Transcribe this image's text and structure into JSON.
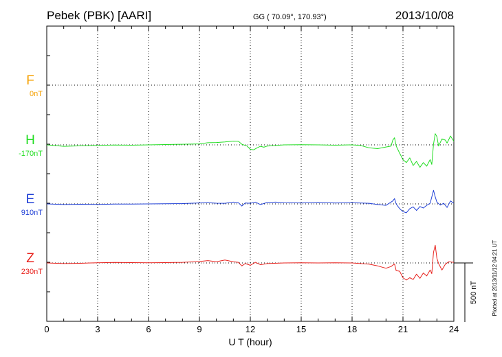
{
  "header": {
    "station": "Pebek (PBK)  [AARI]",
    "coords": "GG ( 70.09°, 170.93°)",
    "date": "2013/10/08"
  },
  "side_note": "Plotted at 2013/11/12 04:21  UT",
  "chart_data": {
    "type": "line",
    "title": "Pebek (PBK)  [AARI]",
    "xlabel": "U T (hour)",
    "xlim": [
      0,
      24
    ],
    "xticks": [
      0,
      3,
      6,
      9,
      12,
      15,
      18,
      21,
      24
    ],
    "grid": true,
    "scale_bar": "500 nT",
    "nt_per_unit": 500,
    "series": [
      {
        "name": "F",
        "baseline_label": "0nT",
        "color": "#f5a000",
        "points": []
      },
      {
        "name": "H",
        "baseline_label": "-170nT",
        "color": "#22dd22",
        "points": [
          [
            0,
            0
          ],
          [
            1,
            -12
          ],
          [
            2,
            -8
          ],
          [
            3,
            -4
          ],
          [
            4,
            -2
          ],
          [
            5,
            -3
          ],
          [
            6,
            0
          ],
          [
            7,
            3
          ],
          [
            8,
            5
          ],
          [
            9,
            8
          ],
          [
            9.5,
            18
          ],
          [
            10,
            20
          ],
          [
            10.5,
            25
          ],
          [
            11,
            32
          ],
          [
            11.3,
            30
          ],
          [
            11.5,
            5
          ],
          [
            11.8,
            -10
          ],
          [
            12,
            -38
          ],
          [
            12.2,
            -42
          ],
          [
            12.4,
            -25
          ],
          [
            12.6,
            -12
          ],
          [
            12.8,
            -20
          ],
          [
            13,
            -10
          ],
          [
            13.5,
            -5
          ],
          [
            14,
            0
          ],
          [
            15,
            2
          ],
          [
            16,
            0
          ],
          [
            17,
            -3
          ],
          [
            18,
            0
          ],
          [
            18.5,
            -5
          ],
          [
            19,
            -25
          ],
          [
            19.5,
            -32
          ],
          [
            20,
            -18
          ],
          [
            20.3,
            -10
          ],
          [
            20.4,
            40
          ],
          [
            20.5,
            60
          ],
          [
            20.6,
            -10
          ],
          [
            20.8,
            -70
          ],
          [
            21,
            -125
          ],
          [
            21.2,
            -150
          ],
          [
            21.4,
            -110
          ],
          [
            21.6,
            -175
          ],
          [
            21.8,
            -140
          ],
          [
            22,
            -190
          ],
          [
            22.2,
            -150
          ],
          [
            22.4,
            -180
          ],
          [
            22.6,
            -125
          ],
          [
            22.7,
            -165
          ],
          [
            22.8,
            5
          ],
          [
            22.9,
            95
          ],
          [
            23,
            70
          ],
          [
            23.1,
            -10
          ],
          [
            23.3,
            50
          ],
          [
            23.5,
            40
          ],
          [
            23.6,
            15
          ],
          [
            23.8,
            75
          ],
          [
            24,
            30
          ]
        ]
      },
      {
        "name": "E",
        "baseline_label": "910nT",
        "color": "#1f3fd6",
        "points": [
          [
            0,
            0
          ],
          [
            1,
            -5
          ],
          [
            2,
            -3
          ],
          [
            3,
            -4
          ],
          [
            4,
            -2
          ],
          [
            5,
            -1
          ],
          [
            6,
            0
          ],
          [
            7,
            2
          ],
          [
            8,
            3
          ],
          [
            9,
            8
          ],
          [
            9.5,
            10
          ],
          [
            10,
            6
          ],
          [
            10.5,
            5
          ],
          [
            11,
            15
          ],
          [
            11.3,
            10
          ],
          [
            11.5,
            -18
          ],
          [
            11.7,
            8
          ],
          [
            12,
            5
          ],
          [
            12.3,
            15
          ],
          [
            12.6,
            -5
          ],
          [
            13,
            12
          ],
          [
            13.5,
            15
          ],
          [
            14,
            10
          ],
          [
            15,
            8
          ],
          [
            16,
            12
          ],
          [
            17,
            8
          ],
          [
            18,
            10
          ],
          [
            19,
            5
          ],
          [
            19.5,
            -5
          ],
          [
            20,
            -12
          ],
          [
            20.4,
            25
          ],
          [
            20.5,
            45
          ],
          [
            20.6,
            0
          ],
          [
            20.8,
            -40
          ],
          [
            21,
            -65
          ],
          [
            21.2,
            -75
          ],
          [
            21.4,
            -40
          ],
          [
            21.6,
            -25
          ],
          [
            21.8,
            -55
          ],
          [
            22,
            -22
          ],
          [
            22.2,
            -35
          ],
          [
            22.4,
            -12
          ],
          [
            22.6,
            5
          ],
          [
            22.8,
            115
          ],
          [
            22.9,
            60
          ],
          [
            23,
            15
          ],
          [
            23.2,
            -10
          ],
          [
            23.4,
            5
          ],
          [
            23.6,
            -30
          ],
          [
            23.8,
            25
          ],
          [
            24,
            5
          ]
        ]
      },
      {
        "name": "Z",
        "baseline_label": "230nT",
        "color": "#e8211c",
        "points": [
          [
            0,
            0
          ],
          [
            1,
            -5
          ],
          [
            2,
            -3
          ],
          [
            3,
            2
          ],
          [
            4,
            4
          ],
          [
            5,
            3
          ],
          [
            6,
            2
          ],
          [
            7,
            3
          ],
          [
            8,
            5
          ],
          [
            9,
            12
          ],
          [
            9.5,
            20
          ],
          [
            10,
            10
          ],
          [
            10.5,
            25
          ],
          [
            11,
            10
          ],
          [
            11.3,
            5
          ],
          [
            11.5,
            -25
          ],
          [
            11.7,
            -5
          ],
          [
            12,
            -20
          ],
          [
            12.3,
            5
          ],
          [
            12.6,
            -15
          ],
          [
            13,
            -5
          ],
          [
            14,
            0
          ],
          [
            15,
            2
          ],
          [
            16,
            0
          ],
          [
            17,
            2
          ],
          [
            18,
            0
          ],
          [
            19,
            -10
          ],
          [
            19.5,
            -25
          ],
          [
            20,
            -45
          ],
          [
            20.3,
            -30
          ],
          [
            20.5,
            -8
          ],
          [
            20.6,
            -65
          ],
          [
            20.8,
            -70
          ],
          [
            21,
            -125
          ],
          [
            21.2,
            -145
          ],
          [
            21.4,
            -125
          ],
          [
            21.6,
            -140
          ],
          [
            21.8,
            -95
          ],
          [
            22,
            -130
          ],
          [
            22.2,
            -85
          ],
          [
            22.4,
            -110
          ],
          [
            22.6,
            -60
          ],
          [
            22.7,
            -90
          ],
          [
            22.8,
            90
          ],
          [
            22.9,
            150
          ],
          [
            23,
            40
          ],
          [
            23.1,
            -5
          ],
          [
            23.3,
            -60
          ],
          [
            23.5,
            -10
          ],
          [
            23.7,
            10
          ],
          [
            24,
            5
          ]
        ]
      }
    ]
  }
}
